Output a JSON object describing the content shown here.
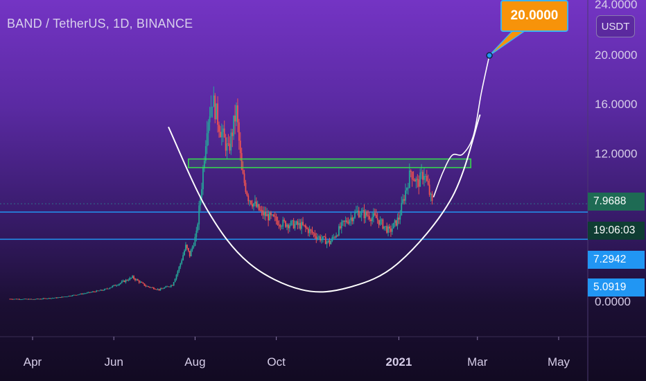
{
  "header": {
    "title": "BAND / TetherUS, 1D, BINANCE",
    "unit_badge": "USDT"
  },
  "callout": {
    "label": "20.0000",
    "value": 20.0
  },
  "price_labels": [
    {
      "label": "7.9688",
      "color": "#1e6b54",
      "kind": "last-price"
    },
    {
      "label": "19:06:03",
      "color": "#0f3d33",
      "kind": "countdown"
    },
    {
      "label": "7.2942",
      "color": "#2196f3",
      "kind": "hline"
    },
    {
      "label": "5.0919",
      "color": "#2196f3",
      "kind": "hline"
    }
  ],
  "colors": {
    "up": "#26a69a",
    "down": "#ef5350",
    "hline": "#2196f3",
    "box": "#35e24a",
    "curve": "#ffffff",
    "callout": "#f7930a"
  },
  "chart_data": {
    "type": "candlestick",
    "title": "BAND / TetherUS, 1D, BINANCE",
    "xlabel": "",
    "ylabel": "",
    "x_ticks": [
      "Apr",
      "Jun",
      "Aug",
      "Oct",
      "2021",
      "Mar",
      "May"
    ],
    "y_ticks": [
      "24.0000",
      "20.0000",
      "16.0000",
      "12.0000",
      "0.0000"
    ],
    "ylim": [
      0,
      24
    ],
    "grid": false,
    "last_price": 7.9688,
    "horizontal_lines": [
      7.2942,
      5.0919
    ],
    "resistance_box": [
      10.9,
      11.6
    ],
    "target": 20.0,
    "price_path": [
      [
        "2020-03-15",
        0.25
      ],
      [
        "2020-04-01",
        0.22
      ],
      [
        "2020-04-20",
        0.35
      ],
      [
        "2020-05-10",
        0.7
      ],
      [
        "2020-05-25",
        1.0
      ],
      [
        "2020-06-05",
        1.5
      ],
      [
        "2020-06-15",
        2.0
      ],
      [
        "2020-06-25",
        1.3
      ],
      [
        "2020-07-05",
        1.0
      ],
      [
        "2020-07-15",
        1.4
      ],
      [
        "2020-07-20",
        2.8
      ],
      [
        "2020-07-25",
        4.5
      ],
      [
        "2020-07-28",
        3.8
      ],
      [
        "2020-08-02",
        5.5
      ],
      [
        "2020-08-06",
        9.5
      ],
      [
        "2020-08-10",
        14.5
      ],
      [
        "2020-08-14",
        16.5
      ],
      [
        "2020-08-20",
        14.0
      ],
      [
        "2020-08-26",
        12.2
      ],
      [
        "2020-09-01",
        15.5
      ],
      [
        "2020-09-05",
        10.5
      ],
      [
        "2020-09-10",
        8.5
      ],
      [
        "2020-09-20",
        7.2
      ],
      [
        "2020-10-05",
        6.4
      ],
      [
        "2020-10-20",
        6.2
      ],
      [
        "2020-11-01",
        5.3
      ],
      [
        "2020-11-10",
        4.8
      ],
      [
        "2020-11-20",
        6.3
      ],
      [
        "2020-12-01",
        7.3
      ],
      [
        "2020-12-15",
        6.8
      ],
      [
        "2020-12-25",
        5.7
      ],
      [
        "2021-01-01",
        6.8
      ],
      [
        "2021-01-06",
        9.0
      ],
      [
        "2021-01-10",
        10.6
      ],
      [
        "2021-01-15",
        9.6
      ],
      [
        "2021-01-20",
        10.5
      ],
      [
        "2021-01-26",
        7.97
      ]
    ],
    "projection": [
      [
        "2021-01-27",
        8.5
      ],
      [
        "2021-02-03",
        10.5
      ],
      [
        "2021-02-10",
        11.9
      ],
      [
        "2021-02-18",
        12.0
      ],
      [
        "2021-02-26",
        13.5
      ],
      [
        "2021-03-04",
        17.0
      ],
      [
        "2021-03-10",
        20.0
      ]
    ],
    "cup_curve": [
      [
        "2020-07-12",
        14.2
      ],
      [
        "2020-08-10",
        7.5
      ],
      [
        "2020-09-10",
        3.2
      ],
      [
        "2020-10-20",
        1.0
      ],
      [
        "2020-11-25",
        1.2
      ],
      [
        "2021-01-01",
        3.2
      ],
      [
        "2021-02-10",
        8.5
      ],
      [
        "2021-03-03",
        15.2
      ]
    ]
  }
}
